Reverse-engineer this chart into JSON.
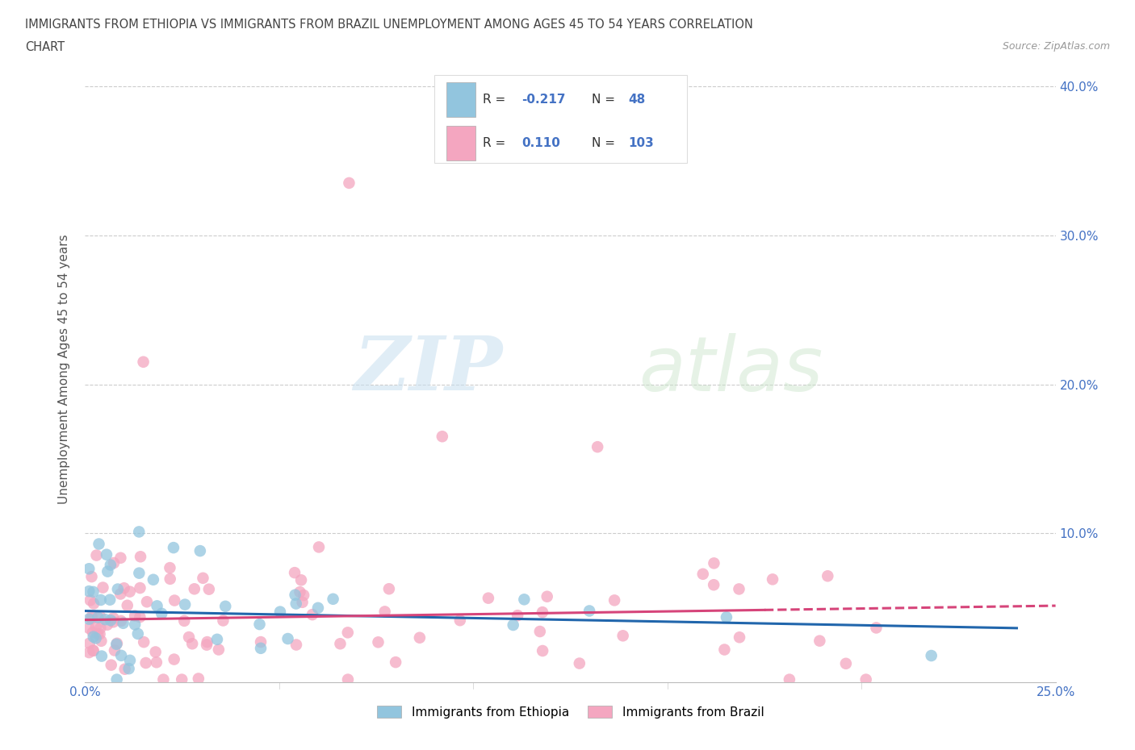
{
  "title_line1": "IMMIGRANTS FROM ETHIOPIA VS IMMIGRANTS FROM BRAZIL UNEMPLOYMENT AMONG AGES 45 TO 54 YEARS CORRELATION",
  "title_line2": "CHART",
  "source": "Source: ZipAtlas.com",
  "ylabel": "Unemployment Among Ages 45 to 54 years",
  "xlim": [
    0.0,
    0.25
  ],
  "ylim": [
    0.0,
    0.42
  ],
  "ethiopia_color": "#92c5de",
  "brazil_color": "#f4a6c0",
  "ethiopia_line_color": "#2166ac",
  "brazil_line_color": "#d6457a",
  "R_ethiopia": -0.217,
  "N_ethiopia": 48,
  "R_brazil": 0.11,
  "N_brazil": 103,
  "watermark_zip": "ZIP",
  "watermark_atlas": "atlas",
  "background_color": "#ffffff",
  "eth_intercept": 0.048,
  "eth_slope": -0.048,
  "bra_intercept": 0.042,
  "bra_slope": 0.038
}
